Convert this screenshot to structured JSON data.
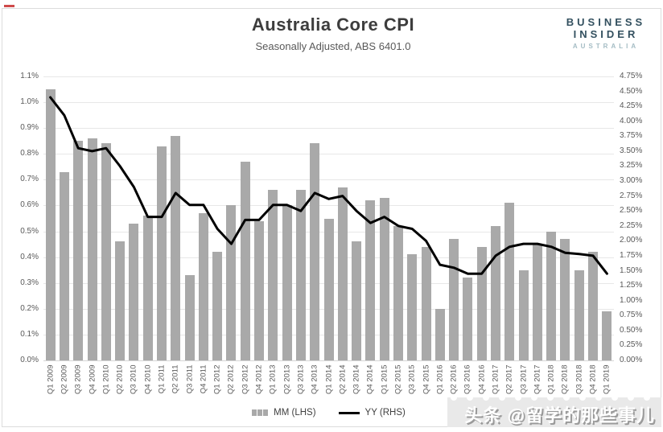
{
  "header": {
    "title": "Australia Core CPI",
    "subtitle": "Seasonally Adjusted, ABS 6401.0",
    "logo": {
      "line1": "BUSINESS",
      "line2": "INSIDER",
      "line3": "AUSTRALIA"
    }
  },
  "watermark": {
    "text": "头条 @留学的那些事儿"
  },
  "colors": {
    "bar": "#a9a9a9",
    "line": "#000000",
    "grid": "#e7e7e7",
    "axis_text": "#595959",
    "logo_dark": "#33505f",
    "logo_light": "#a4bcc4",
    "red_dash": "#cf4a4a"
  },
  "chart_data": {
    "type": "bar",
    "title": "Australia Core CPI",
    "subtitle": "Seasonally Adjusted, ABS 6401.0",
    "grid": true,
    "legend_position": "bottom",
    "categories": [
      "Q1 2009",
      "Q2 2009",
      "Q3 2009",
      "Q4 2009",
      "Q1 2010",
      "Q2 2010",
      "Q3 2010",
      "Q4 2010",
      "Q1 2011",
      "Q2 2011",
      "Q3 2011",
      "Q4 2011",
      "Q1 2012",
      "Q2 2012",
      "Q3 2012",
      "Q4 2012",
      "Q1 2013",
      "Q2 2013",
      "Q3 2013",
      "Q4 2013",
      "Q1 2014",
      "Q2 2014",
      "Q3 2014",
      "Q4 2014",
      "Q1 2015",
      "Q2 2015",
      "Q3 2015",
      "Q4 2015",
      "Q1 2016",
      "Q2 2016",
      "Q3 2016",
      "Q4 2016",
      "Q1 2017",
      "Q2 2017",
      "Q3 2017",
      "Q4 2017",
      "Q1 2018",
      "Q2 2018",
      "Q3 2018",
      "Q4 2018",
      "Q1 2019"
    ],
    "series": [
      {
        "name": "MM (LHS)",
        "type": "bar",
        "axis": "left",
        "color": "#a9a9a9",
        "values": [
          1.05,
          0.73,
          0.85,
          0.86,
          0.84,
          0.46,
          0.53,
          0.56,
          0.83,
          0.87,
          0.33,
          0.57,
          0.42,
          0.6,
          0.77,
          0.54,
          0.66,
          0.6,
          0.66,
          0.84,
          0.55,
          0.67,
          0.46,
          0.62,
          0.63,
          0.52,
          0.41,
          0.44,
          0.2,
          0.47,
          0.32,
          0.44,
          0.52,
          0.61,
          0.35,
          0.45,
          0.5,
          0.47,
          0.35,
          0.42,
          0.19
        ]
      },
      {
        "name": "YY (RHS)",
        "type": "line",
        "axis": "right",
        "color": "#000000",
        "values": [
          4.4,
          4.1,
          3.55,
          3.5,
          3.55,
          3.25,
          2.9,
          2.4,
          2.4,
          2.8,
          2.6,
          2.6,
          2.2,
          1.95,
          2.35,
          2.35,
          2.6,
          2.6,
          2.5,
          2.8,
          2.7,
          2.75,
          2.5,
          2.3,
          2.4,
          2.25,
          2.2,
          2.0,
          1.6,
          1.55,
          1.45,
          1.45,
          1.75,
          1.9,
          1.95,
          1.95,
          1.9,
          1.8,
          1.78,
          1.75,
          1.45
        ]
      }
    ],
    "left_axis": {
      "min": 0.0,
      "max": 1.1,
      "step": 0.1,
      "ticks": [
        "0.0%",
        "0.1%",
        "0.2%",
        "0.3%",
        "0.4%",
        "0.5%",
        "0.6%",
        "0.7%",
        "0.8%",
        "0.9%",
        "1.0%",
        "1.1%"
      ]
    },
    "right_axis": {
      "min": 0.0,
      "max": 4.75,
      "step": 0.25,
      "ticks": [
        "0.00%",
        "0.25%",
        "0.50%",
        "0.75%",
        "1.00%",
        "1.25%",
        "1.50%",
        "1.75%",
        "2.00%",
        "2.25%",
        "2.50%",
        "2.75%",
        "3.00%",
        "3.25%",
        "3.50%",
        "3.75%",
        "4.00%",
        "4.25%",
        "4.50%",
        "4.75%"
      ]
    }
  }
}
